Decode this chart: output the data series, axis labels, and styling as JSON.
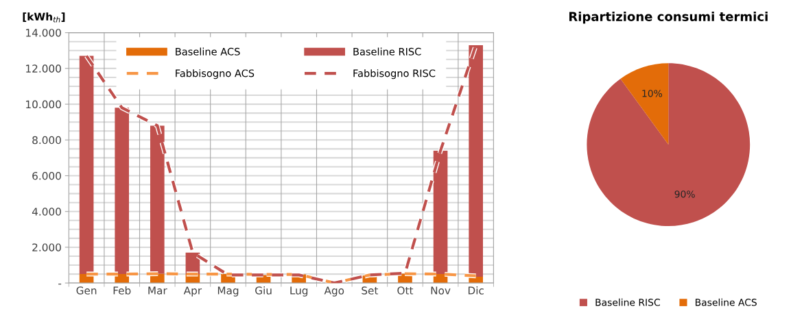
{
  "chart_data": [
    {
      "type": "bar",
      "stacked": true,
      "ylabel": "[kWh$_{th}$]",
      "categories": [
        "Gen",
        "Feb",
        "Mar",
        "Apr",
        "Mag",
        "Giu",
        "Lug",
        "Ago",
        "Set",
        "Ott",
        "Nov",
        "Dic"
      ],
      "series": [
        {
          "name": "Baseline ACS",
          "color": "#e36c09",
          "values": [
            500,
            500,
            520,
            500,
            500,
            450,
            480,
            0,
            420,
            520,
            500,
            350
          ]
        },
        {
          "name": "Baseline RISC",
          "color": "#c0504d",
          "values": [
            12200,
            9300,
            8280,
            1200,
            0,
            0,
            0,
            0,
            0,
            0,
            6900,
            12950
          ]
        },
        {
          "name": "Fabbisogno ACS",
          "type": "line",
          "line_style": "dashed",
          "color": "#f79646",
          "values": [
            500,
            500,
            520,
            500,
            500,
            480,
            480,
            0,
            450,
            520,
            500,
            400
          ]
        },
        {
          "name": "Fabbisogno RISC",
          "type": "line",
          "line_style": "dashed",
          "color": "#c0504d",
          "values": [
            12700,
            9800,
            8800,
            1700,
            450,
            450,
            450,
            0,
            450,
            550,
            7400,
            13300
          ]
        }
      ],
      "ylim": [
        0,
        14000
      ],
      "yticks": [
        {
          "value": 0,
          "label": "-"
        },
        {
          "value": 2000,
          "label": "2.000"
        },
        {
          "value": 4000,
          "label": "4.000"
        },
        {
          "value": 6000,
          "label": "6.000"
        },
        {
          "value": 8000,
          "label": "8.000"
        },
        {
          "value": 10000,
          "label": "10.000"
        },
        {
          "value": 12000,
          "label": "12.000"
        },
        {
          "value": 14000,
          "label": "14.000"
        }
      ],
      "grid": true,
      "legend": "top"
    },
    {
      "type": "pie",
      "title": "Ripartizione consumi termici",
      "categories": [
        "Baseline RISC",
        "Baseline ACS"
      ],
      "values": [
        90,
        10
      ],
      "colors": [
        "#c0504d",
        "#e36c09"
      ],
      "value_labels": [
        "90%",
        "10%"
      ],
      "legend": "bottom"
    }
  ]
}
